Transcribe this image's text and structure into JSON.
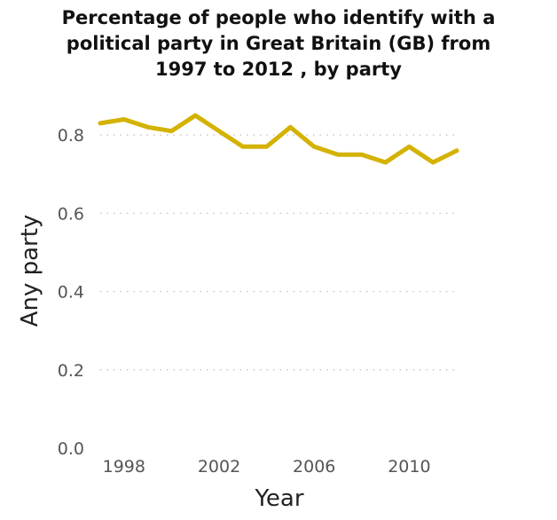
{
  "chart_data": {
    "type": "line",
    "title": "Percentage of people who identify with a\npolitical party in Great Britain (GB) from\n1997 to 2012 , by party",
    "xlabel": "Year",
    "ylabel": "Any party",
    "x": [
      1997,
      1998,
      1999,
      2000,
      2001,
      2002,
      2003,
      2004,
      2005,
      2006,
      2007,
      2008,
      2009,
      2010,
      2011,
      2012
    ],
    "series": [
      {
        "values": [
          0.83,
          0.84,
          0.82,
          0.81,
          0.85,
          0.81,
          0.77,
          0.77,
          0.82,
          0.77,
          0.75,
          0.75,
          0.73,
          0.77,
          0.73,
          0.76
        ]
      }
    ],
    "xticks": [
      1998,
      2002,
      2006,
      2010
    ],
    "xtick_labels": [
      "1998",
      "2002",
      "2006",
      "2010"
    ],
    "yticks": [
      0.0,
      0.2,
      0.4,
      0.6,
      0.8
    ],
    "ytick_labels": [
      "0.0",
      "0.2",
      "0.4",
      "0.6",
      "0.8"
    ],
    "xlim": [
      1997,
      2012
    ],
    "ylim": [
      0,
      0.9
    ],
    "grid": "horizontal dotted",
    "line_color": "#d4b200"
  }
}
